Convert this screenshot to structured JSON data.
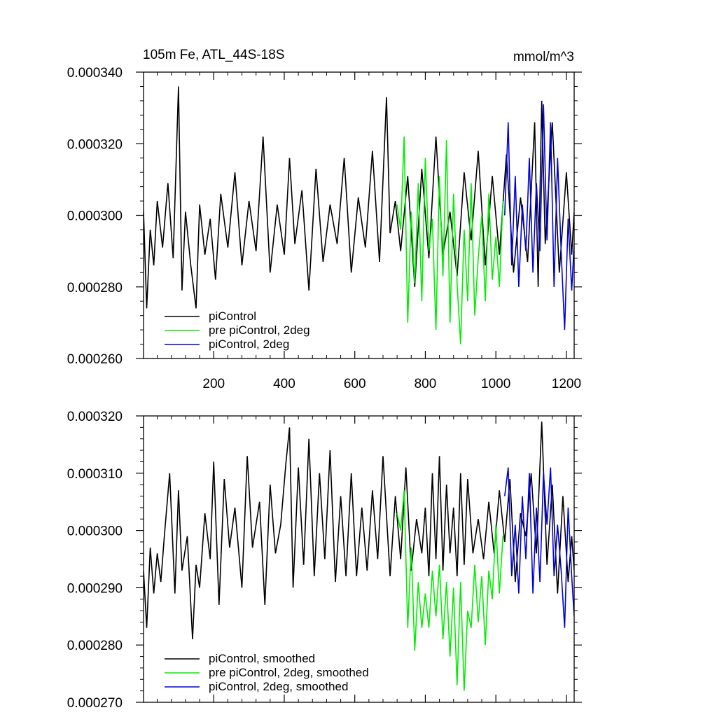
{
  "chart_data": [
    {
      "id": "top",
      "type": "line",
      "title": "105m Fe, ATL_44S-18S",
      "units": "mmol/m^3",
      "xlim": [
        1,
        1222
      ],
      "ylim": [
        0.00026,
        0.00034
      ],
      "xticks": [
        200,
        400,
        600,
        800,
        1000,
        1200
      ],
      "xtick_labels": [
        "200",
        "400",
        "600",
        "800",
        "1000",
        "1200"
      ],
      "yticks": [
        0.00026,
        0.00028,
        0.0003,
        0.00032,
        0.00034
      ],
      "ytick_labels": [
        "0.000260",
        "0.000280",
        "0.000300",
        "0.000320",
        "0.000340"
      ],
      "legend_position": "bottom-left",
      "series": [
        {
          "name": "piControl",
          "color": "#000000",
          "x": [
            1,
            10,
            20,
            30,
            40,
            55,
            70,
            85,
            100,
            110,
            120,
            135,
            150,
            160,
            175,
            190,
            205,
            220,
            240,
            260,
            280,
            300,
            320,
            340,
            360,
            380,
            400,
            415,
            430,
            450,
            470,
            490,
            510,
            530,
            550,
            570,
            590,
            610,
            630,
            650,
            670,
            690,
            700,
            715,
            730,
            750,
            770,
            790,
            810,
            830,
            850,
            870,
            890,
            910,
            930,
            950,
            970,
            990,
            1010,
            1030,
            1050,
            1070,
            1090,
            1110,
            1120,
            1130,
            1140,
            1160,
            1180,
            1200,
            1215,
            1222
          ],
          "values": [
            0.000301,
            0.000274,
            0.000296,
            0.000286,
            0.000304,
            0.000291,
            0.000309,
            0.000288,
            0.000336,
            0.000279,
            0.000301,
            0.000286,
            0.000274,
            0.000303,
            0.000289,
            0.000299,
            0.000282,
            0.000306,
            0.000291,
            0.000312,
            0.000286,
            0.000304,
            0.00029,
            0.000322,
            0.000284,
            0.000303,
            0.000289,
            0.000316,
            0.000292,
            0.000307,
            0.000279,
            0.000313,
            0.000287,
            0.000303,
            0.000292,
            0.000316,
            0.000284,
            0.000305,
            0.000291,
            0.000318,
            0.000287,
            0.000333,
            0.000295,
            0.000304,
            0.00029,
            0.000311,
            0.00028,
            0.000313,
            0.000288,
            0.000322,
            0.000289,
            0.000301,
            0.000283,
            0.000312,
            0.000293,
            0.000318,
            0.000286,
            0.000311,
            0.000289,
            0.000317,
            0.000284,
            0.000305,
            0.000287,
            0.000326,
            0.00028,
            0.000332,
            0.000292,
            0.000326,
            0.000284,
            0.000312,
            0.000289,
            0.000301
          ]
        },
        {
          "name": "pre piControl, 2deg",
          "color": "#00ee00",
          "x": [
            720,
            730,
            740,
            750,
            760,
            770,
            780,
            790,
            800,
            810,
            820,
            830,
            840,
            850,
            860,
            870,
            880,
            890,
            900,
            910,
            920,
            930,
            940,
            950,
            960,
            970,
            980,
            990,
            1000,
            1010,
            1020
          ],
          "values": [
            0.000303,
            0.000296,
            0.000322,
            0.00027,
            0.000301,
            0.000281,
            0.000309,
            0.000276,
            0.000316,
            0.00029,
            0.000299,
            0.000268,
            0.000311,
            0.000283,
            0.000321,
            0.00027,
            0.000306,
            0.000281,
            0.000264,
            0.000296,
            0.000276,
            0.000309,
            0.000272,
            0.000288,
            0.0003,
            0.000276,
            0.000306,
            0.000282,
            0.000294,
            0.00028,
            0.000304
          ]
        },
        {
          "name": "piControl, 2deg",
          "color": "#0000dd",
          "x": [
            1025,
            1035,
            1045,
            1055,
            1065,
            1075,
            1085,
            1095,
            1105,
            1115,
            1125,
            1135,
            1145,
            1155,
            1165,
            1175,
            1185,
            1195,
            1205,
            1215,
            1222
          ],
          "values": [
            0.0003,
            0.000326,
            0.000286,
            0.000311,
            0.00028,
            0.000303,
            0.00029,
            0.000316,
            0.000284,
            0.000309,
            0.00029,
            0.000331,
            0.000293,
            0.000326,
            0.00028,
            0.000316,
            0.00029,
            0.000268,
            0.000299,
            0.000279,
            0.000292
          ]
        }
      ]
    },
    {
      "id": "bottom",
      "type": "line",
      "title": "",
      "xlim": [
        1,
        1222
      ],
      "ylim": [
        0.00027,
        0.00032
      ],
      "xticks": [
        200,
        400,
        600,
        800,
        1000,
        1200
      ],
      "yticks": [
        0.00027,
        0.00028,
        0.00029,
        0.0003,
        0.00031,
        0.00032
      ],
      "ytick_labels": [
        "0.000270",
        "0.000280",
        "0.000290",
        "0.000300",
        "0.000310",
        "0.000320"
      ],
      "legend_position": "bottom-left",
      "series": [
        {
          "name": "piControl, smoothed",
          "color": "#000000",
          "x": [
            1,
            10,
            20,
            30,
            40,
            50,
            60,
            75,
            90,
            100,
            110,
            125,
            140,
            150,
            160,
            175,
            190,
            200,
            215,
            230,
            245,
            260,
            280,
            295,
            310,
            330,
            345,
            360,
            375,
            390,
            405,
            415,
            425,
            440,
            455,
            470,
            485,
            500,
            515,
            530,
            545,
            560,
            575,
            590,
            605,
            620,
            635,
            650,
            665,
            680,
            700,
            715,
            730,
            745,
            760,
            775,
            790,
            800,
            810,
            820,
            830,
            840,
            850,
            860,
            870,
            880,
            890,
            900,
            910,
            920,
            935,
            950,
            965,
            980,
            995,
            1010,
            1025,
            1040,
            1055,
            1070,
            1085,
            1100,
            1115,
            1130,
            1145,
            1160,
            1175,
            1190,
            1205,
            1215,
            1222
          ],
          "values": [
            0.000293,
            0.000283,
            0.000297,
            0.000289,
            0.000296,
            0.000291,
            0.000299,
            0.00031,
            0.000289,
            0.000307,
            0.000293,
            0.000299,
            0.000281,
            0.000294,
            0.00029,
            0.000303,
            0.000295,
            0.000312,
            0.000287,
            0.000309,
            0.000297,
            0.000304,
            0.00029,
            0.000313,
            0.000297,
            0.000305,
            0.000287,
            0.000308,
            0.000296,
            0.000301,
            0.000312,
            0.000318,
            0.00029,
            0.000311,
            0.000294,
            0.000316,
            0.000292,
            0.00031,
            0.000295,
            0.000314,
            0.000291,
            0.000306,
            0.000292,
            0.00031,
            0.000292,
            0.000304,
            0.000293,
            0.000307,
            0.000295,
            0.000313,
            0.000292,
            0.000306,
            0.000295,
            0.000311,
            0.000293,
            0.000302,
            0.000296,
            0.000304,
            0.000292,
            0.00031,
            0.000295,
            0.000313,
            0.000293,
            0.000308,
            0.000296,
            0.000304,
            0.000292,
            0.00031,
            0.000294,
            0.000309,
            0.000296,
            0.000302,
            0.000295,
            0.000305,
            0.000296,
            0.000307,
            0.000298,
            0.000309,
            0.000291,
            0.000303,
            0.000299,
            0.00031,
            0.000296,
            0.000319,
            0.000294,
            0.000308,
            0.000289,
            0.000306,
            0.000291,
            0.000299,
            0.000293
          ]
        },
        {
          "name": "pre piControl, 2deg, smoothed",
          "color": "#00ee00",
          "x": [
            720,
            730,
            740,
            750,
            760,
            770,
            780,
            790,
            800,
            810,
            820,
            830,
            840,
            850,
            860,
            870,
            880,
            890,
            900,
            910,
            920,
            930,
            940,
            950,
            960,
            970,
            980,
            990,
            1000,
            1010,
            1020
          ],
          "values": [
            0.000303,
            0.0003,
            0.000307,
            0.000283,
            0.000297,
            0.000279,
            0.000291,
            0.000283,
            0.000289,
            0.000283,
            0.000293,
            0.000285,
            0.000294,
            0.000281,
            0.000291,
            0.000278,
            0.00029,
            0.000273,
            0.000291,
            0.000272,
            0.000286,
            0.000283,
            0.000294,
            0.000284,
            0.000292,
            0.00028,
            0.000293,
            0.000288,
            0.000301,
            0.000289,
            0.000299
          ]
        },
        {
          "name": "piControl, 2deg, smoothed",
          "color": "#0000dd",
          "x": [
            1025,
            1035,
            1045,
            1055,
            1065,
            1075,
            1085,
            1095,
            1105,
            1115,
            1125,
            1135,
            1145,
            1155,
            1165,
            1175,
            1185,
            1195,
            1205,
            1215,
            1222
          ],
          "values": [
            0.000306,
            0.000311,
            0.000292,
            0.000301,
            0.000289,
            0.000306,
            0.000295,
            0.00031,
            0.000289,
            0.000304,
            0.000291,
            0.00031,
            0.000301,
            0.000311,
            0.000292,
            0.000301,
            0.000293,
            0.000283,
            0.000304,
            0.000292,
            0.000285
          ]
        }
      ]
    }
  ]
}
